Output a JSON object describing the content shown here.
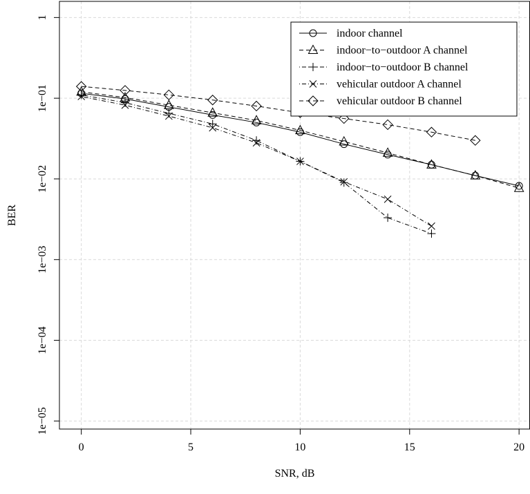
{
  "chart_data": {
    "type": "line",
    "title": "",
    "xlabel": "SNR, dB",
    "ylabel": "BER",
    "xlim": [
      -1,
      20.5
    ],
    "ylim_log10": [
      -5.1,
      0.2
    ],
    "log_y": true,
    "grid": true,
    "legend_position": "top-right",
    "x_ticks": [
      0,
      5,
      10,
      15,
      20
    ],
    "x_tick_labels": [
      "0",
      "5",
      "10",
      "15",
      "20"
    ],
    "y_ticks": [
      1e-05,
      0.0001,
      0.001,
      0.01,
      0.1,
      1
    ],
    "y_tick_labels": [
      "1e−05",
      "1e−04",
      "1e−03",
      "1e−02",
      "1e−01",
      "1"
    ],
    "series": [
      {
        "name": "indoor channel",
        "marker": "circle",
        "dash": "solid",
        "x": [
          0,
          2,
          4,
          6,
          8,
          10,
          12,
          14,
          16,
          18,
          20
        ],
        "y": [
          0.115,
          0.098,
          0.078,
          0.062,
          0.05,
          0.038,
          0.027,
          0.02,
          0.015,
          0.011,
          0.0082
        ]
      },
      {
        "name": "indoor−to−outdoor A channel",
        "marker": "triangle",
        "dash": "dashed",
        "x": [
          0,
          2,
          4,
          6,
          8,
          10,
          12,
          14,
          16,
          18,
          20
        ],
        "y": [
          0.12,
          0.102,
          0.082,
          0.066,
          0.053,
          0.04,
          0.029,
          0.021,
          0.015,
          0.011,
          0.0077
        ]
      },
      {
        "name": "indoor−to−outdoor B channel",
        "marker": "plus",
        "dash": "dotdash",
        "x": [
          0,
          2,
          4,
          6,
          8,
          10,
          12,
          14,
          16
        ],
        "y": [
          0.11,
          0.088,
          0.065,
          0.048,
          0.03,
          0.0165,
          0.009,
          0.0033,
          0.0021
        ]
      },
      {
        "name": "vehicular outdoor A channel",
        "marker": "cross",
        "dash": "dotdash",
        "x": [
          0,
          2,
          4,
          6,
          8,
          10,
          12,
          14,
          16
        ],
        "y": [
          0.105,
          0.082,
          0.06,
          0.043,
          0.028,
          0.0165,
          0.0092,
          0.0056,
          0.0026
        ]
      },
      {
        "name": "vehicular outdoor B channel",
        "marker": "diamond",
        "dash": "dashed",
        "x": [
          0,
          2,
          4,
          6,
          8,
          10,
          12,
          14,
          16,
          18
        ],
        "y": [
          0.14,
          0.125,
          0.11,
          0.095,
          0.08,
          0.066,
          0.056,
          0.047,
          0.038,
          0.03
        ]
      }
    ]
  }
}
